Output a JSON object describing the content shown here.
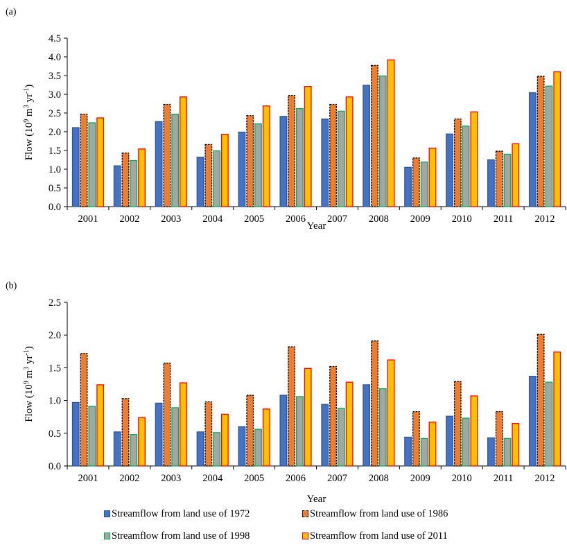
{
  "panels": [
    {
      "label": "(a)",
      "ylabel_text": "Flow (10",
      "ylabel_sup1": "9",
      "ylabel_mid": " m",
      "ylabel_sup2": "3",
      "ylabel_mid2": " yr",
      "ylabel_sup3": "-1",
      "ylabel_end": ")",
      "xlabel": "Year"
    },
    {
      "label": "(b)",
      "ylabel_text": "Flow (10",
      "ylabel_sup1": "9",
      "ylabel_mid": " m",
      "ylabel_sup2": "3",
      "ylabel_mid2": " yr",
      "ylabel_sup3": "-1",
      "ylabel_end": ")",
      "xlabel": "Year"
    }
  ],
  "series_style": [
    {
      "fill": "#4472C4",
      "stroke": "#2F5597",
      "dash": false
    },
    {
      "fill": "#ED7D31",
      "stroke": "#000000",
      "dash": true
    },
    {
      "fill": "#A5A5A5",
      "stroke": "#00B050",
      "dash": false
    },
    {
      "fill": "#FFC000",
      "stroke": "#FF0000",
      "dash": false
    }
  ],
  "legend": {
    "row1": [
      "Streamflow from land use of 1972",
      "Streamflow from land use of 1986"
    ],
    "row2": [
      "Streamflow from land use of 1998",
      "Streamflow from land use of 2011"
    ]
  },
  "chart_data": [
    {
      "type": "bar",
      "title": "",
      "xlabel": "Year",
      "ylabel": "Flow (10^9 m^3 yr^-1)",
      "ylim": [
        0,
        4.5
      ],
      "yticks": [
        "0.0",
        "0.5",
        "1.0",
        "1.5",
        "2.0",
        "2.5",
        "3.0",
        "3.5",
        "4.0",
        "4.5"
      ],
      "ytick_values": [
        0,
        0.5,
        1.0,
        1.5,
        2.0,
        2.5,
        3.0,
        3.5,
        4.0,
        4.5
      ],
      "categories": [
        "2001",
        "2002",
        "2003",
        "2004",
        "2005",
        "2006",
        "2007",
        "2008",
        "2009",
        "2010",
        "2011",
        "2012"
      ],
      "series": [
        {
          "name": "Streamflow from land use of 1972",
          "values": [
            2.11,
            1.09,
            2.27,
            1.32,
            1.99,
            2.41,
            2.34,
            3.24,
            1.05,
            1.94,
            1.25,
            3.04
          ]
        },
        {
          "name": "Streamflow from land use of 1986",
          "values": [
            2.47,
            1.43,
            2.73,
            1.66,
            2.43,
            2.97,
            2.73,
            3.77,
            1.3,
            2.34,
            1.48,
            3.48
          ]
        },
        {
          "name": "Streamflow from land use of 1998",
          "values": [
            2.24,
            1.23,
            2.47,
            1.49,
            2.21,
            2.62,
            2.55,
            3.49,
            1.19,
            2.15,
            1.4,
            3.22
          ]
        },
        {
          "name": "Streamflow from land use of 2011",
          "values": [
            2.37,
            1.54,
            2.93,
            1.93,
            2.69,
            3.21,
            2.93,
            3.92,
            1.56,
            2.53,
            1.68,
            3.6
          ]
        }
      ],
      "grid": false,
      "legend_position": "bottom"
    },
    {
      "type": "bar",
      "title": "",
      "xlabel": "Year",
      "ylabel": "Flow (10^9 m^3 yr^-1)",
      "ylim": [
        0,
        2.5
      ],
      "yticks": [
        "0.0",
        "0.5",
        "1.0",
        "1.5",
        "2.0",
        "2.5"
      ],
      "ytick_values": [
        0,
        0.5,
        1.0,
        1.5,
        2.0,
        2.5
      ],
      "categories": [
        "2001",
        "2002",
        "2003",
        "2004",
        "2005",
        "2006",
        "2007",
        "2008",
        "2009",
        "2010",
        "2011",
        "2012"
      ],
      "series": [
        {
          "name": "Streamflow from land use of 1972",
          "values": [
            0.97,
            0.52,
            0.96,
            0.52,
            0.6,
            1.08,
            0.94,
            1.24,
            0.44,
            0.76,
            0.43,
            1.37
          ]
        },
        {
          "name": "Streamflow from land use of 1986",
          "values": [
            1.72,
            1.03,
            1.57,
            0.98,
            1.08,
            1.82,
            1.52,
            1.91,
            0.83,
            1.29,
            0.83,
            2.01
          ]
        },
        {
          "name": "Streamflow from land use of 1998",
          "values": [
            0.91,
            0.48,
            0.89,
            0.51,
            0.56,
            1.06,
            0.88,
            1.18,
            0.42,
            0.73,
            0.42,
            1.28
          ]
        },
        {
          "name": "Streamflow from land use of 2011",
          "values": [
            1.24,
            0.74,
            1.27,
            0.79,
            0.87,
            1.49,
            1.28,
            1.62,
            0.67,
            1.07,
            0.65,
            1.74
          ]
        }
      ],
      "grid": false,
      "legend_position": "bottom"
    }
  ]
}
